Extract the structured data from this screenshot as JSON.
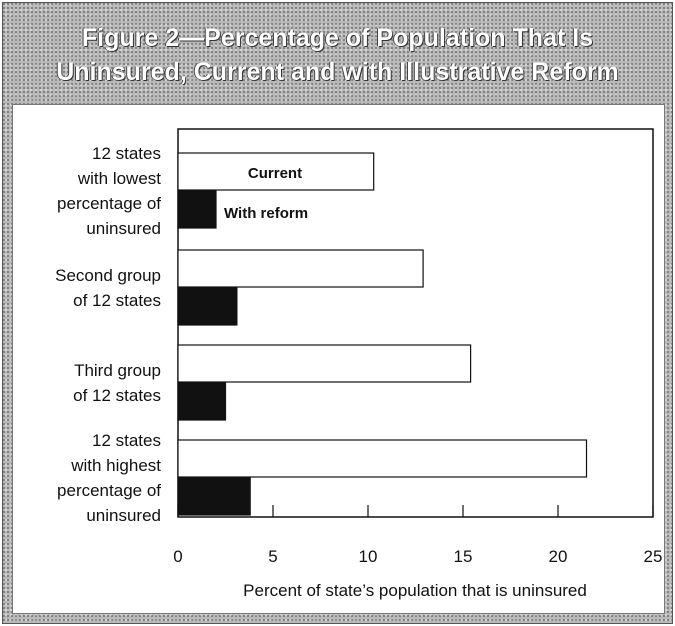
{
  "title_line1": "Figure 2—Percentage of Population That Is",
  "title_line2": "Uninsured, Current and with Illustrative Reform",
  "chart_data": {
    "type": "bar",
    "orientation": "horizontal",
    "categories": [
      [
        "12 states",
        "with lowest",
        "percentage of",
        "uninsured"
      ],
      [
        "Second group",
        "of 12 states"
      ],
      [
        "Third group",
        "of 12 states"
      ],
      [
        "12 states",
        "with highest",
        "percentage of",
        "uninsured"
      ]
    ],
    "series": [
      {
        "name": "Current",
        "values": [
          10.3,
          12.9,
          15.4,
          21.5
        ],
        "color": "#ffffff"
      },
      {
        "name": "With reform",
        "values": [
          2.0,
          3.1,
          2.5,
          3.8
        ],
        "color": "#111111"
      }
    ],
    "xlabel": "Percent of state’s population that is uninsured",
    "xlim": [
      0,
      25
    ],
    "xticks": [
      "0",
      "5",
      "10",
      "15",
      "20",
      "25"
    ],
    "legend": "inline on first group bars",
    "grid": false
  }
}
